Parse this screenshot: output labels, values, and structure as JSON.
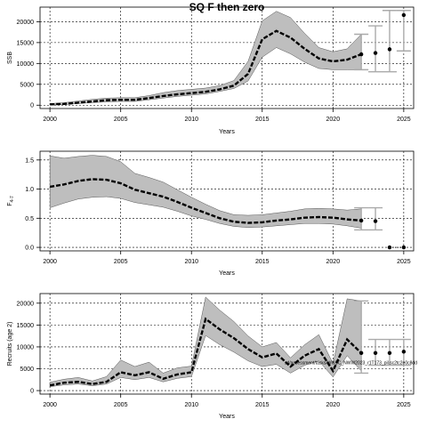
{
  "chart_data": [
    {
      "type": "line",
      "title": "SQ F then zero",
      "xlabel": "Years",
      "ylabel": "SSB",
      "xlim": [
        1999.3,
        2025.7
      ],
      "ylim": [
        -800,
        23500
      ],
      "xticks": [
        2000,
        2005,
        2010,
        2015,
        2020,
        2025
      ],
      "yticks": [
        0,
        5000,
        10000,
        15000,
        20000
      ],
      "grid": true,
      "band_color": "#bebebe",
      "x": [
        2000,
        2001,
        2002,
        2003,
        2004,
        2005,
        2006,
        2007,
        2008,
        2009,
        2010,
        2011,
        2012,
        2013,
        2014,
        2015,
        2016,
        2017,
        2018,
        2019,
        2020,
        2021,
        2022
      ],
      "median": [
        200,
        300,
        600,
        900,
        1200,
        1300,
        1300,
        1700,
        2200,
        2600,
        2900,
        3200,
        3800,
        4700,
        7500,
        15800,
        17800,
        16200,
        13500,
        11200,
        10500,
        10900,
        12200
      ],
      "lower": [
        100,
        150,
        400,
        600,
        800,
        900,
        900,
        1300,
        1700,
        2100,
        2400,
        2700,
        3300,
        4000,
        5800,
        11500,
        13800,
        12300,
        10300,
        8800,
        8500,
        8500,
        8500
      ],
      "upper": [
        400,
        600,
        1000,
        1400,
        1700,
        1800,
        1800,
        2300,
        3000,
        3500,
        3800,
        4100,
        4700,
        5900,
        10500,
        20200,
        22500,
        21000,
        17200,
        13800,
        12800,
        13500,
        17000
      ],
      "projection": [
        {
          "x": 2022,
          "median": 12200,
          "lower": 8500,
          "upper": 17000
        },
        {
          "x": 2023,
          "median": 12500,
          "lower": 8000,
          "upper": 19000
        },
        {
          "x": 2024,
          "median": 13400,
          "lower": 8000,
          "upper": 22700
        },
        {
          "x": 2025,
          "median": 21600,
          "lower": 13000,
          "upper": 22700
        }
      ]
    },
    {
      "type": "line",
      "title": "",
      "xlabel": "Years",
      "ylabel": "F",
      "ylabel_subscript": "4-7",
      "xlim": [
        1999.3,
        2025.7
      ],
      "ylim": [
        -0.06,
        1.65
      ],
      "xticks": [
        2000,
        2005,
        2010,
        2015,
        2020,
        2025
      ],
      "yticks": [
        "0.0",
        "0.5",
        "1.0",
        "1.5"
      ],
      "yticks_values": [
        0,
        0.5,
        1.0,
        1.5
      ],
      "grid": true,
      "band_color": "#bebebe",
      "x": [
        2000,
        2001,
        2002,
        2003,
        2004,
        2005,
        2006,
        2007,
        2008,
        2009,
        2010,
        2011,
        2012,
        2013,
        2014,
        2015,
        2016,
        2017,
        2018,
        2019,
        2020,
        2021,
        2022
      ],
      "median": [
        1.04,
        1.08,
        1.14,
        1.17,
        1.16,
        1.1,
        0.99,
        0.93,
        0.87,
        0.78,
        0.68,
        0.59,
        0.5,
        0.44,
        0.42,
        0.43,
        0.46,
        0.48,
        0.51,
        0.52,
        0.51,
        0.48,
        0.46
      ],
      "lower": [
        0.68,
        0.76,
        0.83,
        0.86,
        0.87,
        0.84,
        0.77,
        0.73,
        0.69,
        0.62,
        0.54,
        0.48,
        0.41,
        0.36,
        0.34,
        0.35,
        0.37,
        0.39,
        0.41,
        0.41,
        0.4,
        0.37,
        0.33
      ],
      "upper": [
        1.57,
        1.53,
        1.56,
        1.58,
        1.56,
        1.47,
        1.27,
        1.2,
        1.12,
        0.99,
        0.86,
        0.74,
        0.63,
        0.56,
        0.55,
        0.56,
        0.59,
        0.62,
        0.66,
        0.67,
        0.66,
        0.64,
        0.66
      ],
      "projection": [
        {
          "x": 2022,
          "median": 0.46,
          "lower": 0.3,
          "upper": 0.68
        },
        {
          "x": 2023,
          "median": 0.45,
          "lower": 0.3,
          "upper": 0.68
        },
        {
          "x": 2024,
          "median": 0.0,
          "lower": 0.0,
          "upper": 0.0
        },
        {
          "x": 2025,
          "median": 0.0,
          "lower": 0.0,
          "upper": 0.0
        }
      ]
    },
    {
      "type": "line",
      "title": "",
      "xlabel": "Years",
      "ylabel": "Recruits (age 2)",
      "xlim": [
        1999.3,
        2025.7
      ],
      "ylim": [
        -800,
        22200
      ],
      "xticks": [
        2000,
        2005,
        2010,
        2015,
        2020,
        2025
      ],
      "yticks": [
        0,
        5000,
        10000,
        15000,
        20000
      ],
      "grid": true,
      "band_color": "#bebebe",
      "annotation": "sd/assessment/tasks/WGSC_NWW2023_r1T173_pil.sc2tc2e0c8dd",
      "x": [
        2000,
        2001,
        2002,
        2003,
        2004,
        2005,
        2006,
        2007,
        2008,
        2009,
        2010,
        2011,
        2012,
        2013,
        2014,
        2015,
        2016,
        2017,
        2018,
        2019,
        2020,
        2021,
        2022
      ],
      "median": [
        1200,
        1800,
        2000,
        1500,
        2000,
        4200,
        3500,
        4200,
        2700,
        3700,
        4200,
        16400,
        14000,
        12000,
        9500,
        7600,
        8500,
        5500,
        8000,
        9500,
        4500,
        11700,
        8600
      ],
      "lower": [
        900,
        1300,
        1500,
        1100,
        1500,
        3000,
        2500,
        3000,
        2000,
        2800,
        3200,
        12600,
        10500,
        8800,
        6800,
        5500,
        6000,
        4000,
        5800,
        6800,
        3100,
        8000,
        4500
      ],
      "upper": [
        1900,
        2600,
        3000,
        2200,
        3200,
        7000,
        5500,
        6500,
        4000,
        5200,
        5600,
        21400,
        18400,
        15800,
        12500,
        10000,
        11000,
        7500,
        10500,
        12800,
        6200,
        21000,
        20500
      ],
      "projection": [
        {
          "x": 2022,
          "median": 8600,
          "lower": 4000,
          "upper": 20500
        },
        {
          "x": 2023,
          "median": 8600,
          "lower": 5800,
          "upper": 11700
        },
        {
          "x": 2024,
          "median": 8600,
          "lower": 5800,
          "upper": 11700
        },
        {
          "x": 2025,
          "median": 8900,
          "lower": 5800,
          "upper": 11700
        }
      ]
    }
  ]
}
